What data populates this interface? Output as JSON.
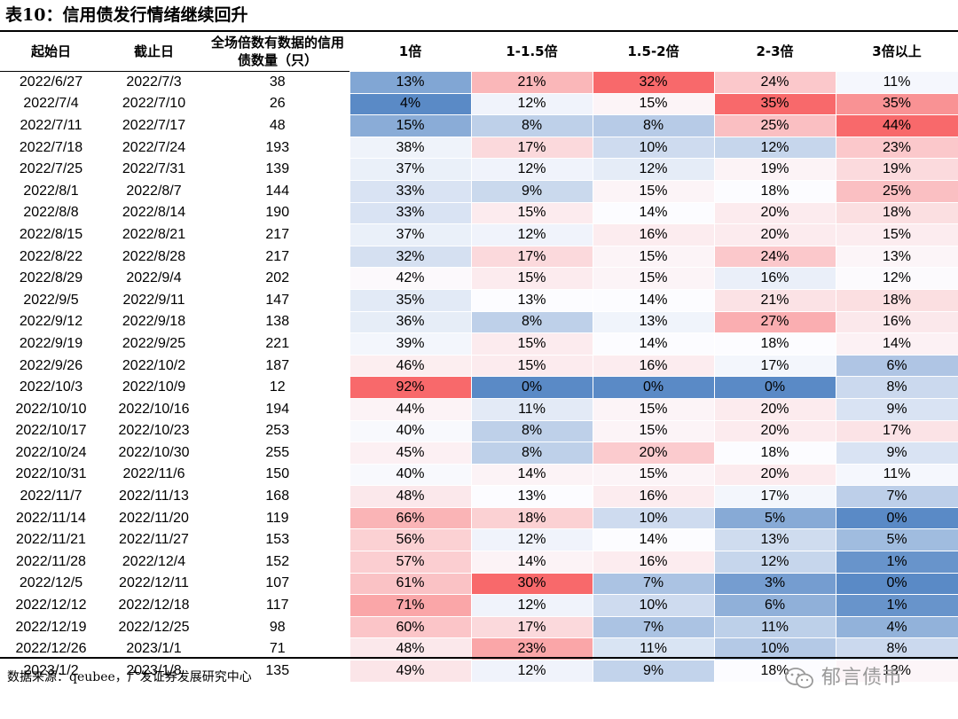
{
  "title": "表10：信用债发行情绪继续回升",
  "headers": [
    "起始日",
    "截止日",
    "全场倍数有数据的信用债数量（只）",
    "1倍",
    "1-1.5倍",
    "1.5-2倍",
    "2-3倍",
    "3倍以上"
  ],
  "rows": [
    [
      "2022/6/27",
      "2022/7/3",
      "38",
      "13%",
      "21%",
      "32%",
      "24%",
      "11%"
    ],
    [
      "2022/7/4",
      "2022/7/10",
      "26",
      "4%",
      "12%",
      "15%",
      "35%",
      "35%"
    ],
    [
      "2022/7/11",
      "2022/7/17",
      "48",
      "15%",
      "8%",
      "8%",
      "25%",
      "44%"
    ],
    [
      "2022/7/18",
      "2022/7/24",
      "193",
      "38%",
      "17%",
      "10%",
      "12%",
      "23%"
    ],
    [
      "2022/7/25",
      "2022/7/31",
      "139",
      "37%",
      "12%",
      "12%",
      "19%",
      "19%"
    ],
    [
      "2022/8/1",
      "2022/8/7",
      "144",
      "33%",
      "9%",
      "15%",
      "18%",
      "25%"
    ],
    [
      "2022/8/8",
      "2022/8/14",
      "190",
      "33%",
      "15%",
      "14%",
      "20%",
      "18%"
    ],
    [
      "2022/8/15",
      "2022/8/21",
      "217",
      "37%",
      "12%",
      "16%",
      "20%",
      "15%"
    ],
    [
      "2022/8/22",
      "2022/8/28",
      "217",
      "32%",
      "17%",
      "15%",
      "24%",
      "13%"
    ],
    [
      "2022/8/29",
      "2022/9/4",
      "202",
      "42%",
      "15%",
      "15%",
      "16%",
      "12%"
    ],
    [
      "2022/9/5",
      "2022/9/11",
      "147",
      "35%",
      "13%",
      "14%",
      "21%",
      "18%"
    ],
    [
      "2022/9/12",
      "2022/9/18",
      "138",
      "36%",
      "8%",
      "13%",
      "27%",
      "16%"
    ],
    [
      "2022/9/19",
      "2022/9/25",
      "221",
      "39%",
      "15%",
      "14%",
      "18%",
      "14%"
    ],
    [
      "2022/9/26",
      "2022/10/2",
      "187",
      "46%",
      "15%",
      "16%",
      "17%",
      "6%"
    ],
    [
      "2022/10/3",
      "2022/10/9",
      "12",
      "92%",
      "0%",
      "0%",
      "0%",
      "8%"
    ],
    [
      "2022/10/10",
      "2022/10/16",
      "194",
      "44%",
      "11%",
      "15%",
      "20%",
      "9%"
    ],
    [
      "2022/10/17",
      "2022/10/23",
      "253",
      "40%",
      "8%",
      "15%",
      "20%",
      "17%"
    ],
    [
      "2022/10/24",
      "2022/10/30",
      "255",
      "45%",
      "8%",
      "20%",
      "18%",
      "9%"
    ],
    [
      "2022/10/31",
      "2022/11/6",
      "150",
      "40%",
      "14%",
      "15%",
      "20%",
      "11%"
    ],
    [
      "2022/11/7",
      "2022/11/13",
      "168",
      "48%",
      "13%",
      "16%",
      "17%",
      "7%"
    ],
    [
      "2022/11/14",
      "2022/11/20",
      "119",
      "66%",
      "18%",
      "10%",
      "5%",
      "0%"
    ],
    [
      "2022/11/21",
      "2022/11/27",
      "153",
      "56%",
      "12%",
      "14%",
      "13%",
      "5%"
    ],
    [
      "2022/11/28",
      "2022/12/4",
      "152",
      "57%",
      "14%",
      "16%",
      "12%",
      "1%"
    ],
    [
      "2022/12/5",
      "2022/12/11",
      "107",
      "61%",
      "30%",
      "7%",
      "3%",
      "0%"
    ],
    [
      "2022/12/12",
      "2022/12/18",
      "117",
      "71%",
      "12%",
      "10%",
      "6%",
      "1%"
    ],
    [
      "2022/12/19",
      "2022/12/25",
      "98",
      "60%",
      "17%",
      "7%",
      "11%",
      "4%"
    ],
    [
      "2022/12/26",
      "2023/1/1",
      "71",
      "48%",
      "23%",
      "11%",
      "10%",
      "8%"
    ],
    [
      "2023/1/2",
      "2023/1/8",
      "135",
      "49%",
      "12%",
      "9%",
      "18%",
      "13%"
    ]
  ],
  "footer": "数据来源：qeubee，广发证券发展研究中心",
  "watermark": "郁言债市",
  "colors": {
    "high": "#f8696b",
    "mid": "#fcfcff",
    "low": "#5a8ac6"
  }
}
